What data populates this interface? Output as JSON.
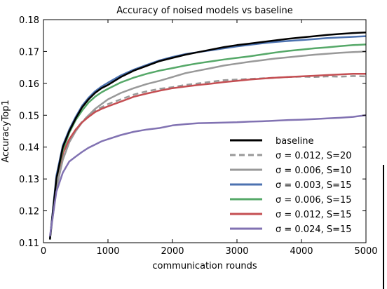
{
  "chart_data": {
    "type": "line",
    "title": "Accuracy of noised models vs baseline",
    "xlabel": "communication rounds",
    "ylabel": "AccuracyTop1",
    "xlim": [
      0,
      5000
    ],
    "ylim": [
      0.11,
      0.18
    ],
    "xticks": [
      0,
      1000,
      2000,
      3000,
      4000,
      5000
    ],
    "xtick_labels": [
      "0",
      "1000",
      "2000",
      "3000",
      "4000",
      "5000"
    ],
    "yticks": [
      0.11,
      0.12,
      0.13,
      0.14,
      0.15,
      0.16,
      0.17,
      0.18
    ],
    "ytick_labels": [
      "0.11",
      "0.12",
      "0.13",
      "0.14",
      "0.15",
      "0.16",
      "0.17",
      "0.18"
    ],
    "grid": false,
    "legend_position": "lower-right",
    "series": [
      {
        "name": "baseline",
        "color": "#000000",
        "dash": "solid",
        "x": [
          100,
          200,
          300,
          400,
          500,
          600,
          700,
          800,
          900,
          1000,
          1200,
          1400,
          1600,
          1800,
          2000,
          2200,
          2400,
          2600,
          2800,
          3000,
          3200,
          3400,
          3600,
          3800,
          4000,
          4200,
          4400,
          4600,
          4800,
          5000
        ],
        "y": [
          0.111,
          0.13,
          0.14,
          0.145,
          0.149,
          0.1525,
          0.155,
          0.157,
          0.1585,
          0.1595,
          0.162,
          0.164,
          0.1655,
          0.167,
          0.168,
          0.169,
          0.1698,
          0.1706,
          0.1714,
          0.172,
          0.1725,
          0.173,
          0.1735,
          0.174,
          0.1744,
          0.1748,
          0.1752,
          0.1755,
          0.1758,
          0.176
        ]
      },
      {
        "name": "σ = 0.012, S=20",
        "color": "#999999",
        "dash": "dashed",
        "x": [
          100,
          200,
          300,
          400,
          500,
          600,
          700,
          800,
          900,
          1000,
          1200,
          1400,
          1600,
          1800,
          2000,
          2200,
          2400,
          2600,
          2800,
          3000,
          3200,
          3400,
          3600,
          3800,
          4000,
          4200,
          4400,
          4600,
          4800,
          5000
        ],
        "y": [
          0.111,
          0.128,
          0.137,
          0.142,
          0.1455,
          0.148,
          0.15,
          0.1515,
          0.1525,
          0.1535,
          0.155,
          0.1565,
          0.1575,
          0.1583,
          0.1588,
          0.1595,
          0.16,
          0.1605,
          0.161,
          0.1612,
          0.1614,
          0.1616,
          0.1618,
          0.162,
          0.1621,
          0.162,
          0.1622,
          0.1621,
          0.1623,
          0.1622
        ]
      },
      {
        "name": "σ = 0.006, S=10",
        "color": "#999999",
        "dash": "solid",
        "x": [
          100,
          200,
          300,
          400,
          500,
          600,
          700,
          800,
          900,
          1000,
          1200,
          1400,
          1600,
          1800,
          2000,
          2200,
          2400,
          2600,
          2800,
          3000,
          3200,
          3400,
          3600,
          3800,
          4000,
          4200,
          4400,
          4600,
          4800,
          5000
        ],
        "y": [
          0.111,
          0.127,
          0.136,
          0.1415,
          0.145,
          0.1478,
          0.15,
          0.152,
          0.1535,
          0.155,
          0.157,
          0.1585,
          0.1598,
          0.1608,
          0.162,
          0.1632,
          0.164,
          0.1648,
          0.1656,
          0.1662,
          0.1668,
          0.1673,
          0.1678,
          0.1682,
          0.1686,
          0.169,
          0.1693,
          0.1696,
          0.1698,
          0.17
        ]
      },
      {
        "name": "σ = 0.003, S=15",
        "color": "#4c72b0",
        "dash": "solid",
        "x": [
          100,
          200,
          300,
          400,
          500,
          600,
          700,
          800,
          900,
          1000,
          1200,
          1400,
          1600,
          1800,
          2000,
          2200,
          2400,
          2600,
          2800,
          3000,
          3200,
          3400,
          3600,
          3800,
          4000,
          4200,
          4400,
          4600,
          4800,
          5000
        ],
        "y": [
          0.111,
          0.131,
          0.1405,
          0.1455,
          0.1495,
          0.153,
          0.1555,
          0.1575,
          0.159,
          0.1602,
          0.1625,
          0.1643,
          0.1658,
          0.1672,
          0.1683,
          0.1692,
          0.1698,
          0.1704,
          0.171,
          0.1716,
          0.1721,
          0.1726,
          0.173,
          0.1733,
          0.1736,
          0.1739,
          0.1742,
          0.1744,
          0.1746,
          0.1748
        ]
      },
      {
        "name": "σ = 0.006, S=15",
        "color": "#55a868",
        "dash": "solid",
        "x": [
          100,
          200,
          300,
          400,
          500,
          600,
          700,
          800,
          900,
          1000,
          1200,
          1400,
          1600,
          1800,
          2000,
          2200,
          2400,
          2600,
          2800,
          3000,
          3200,
          3400,
          3600,
          3800,
          4000,
          4200,
          4400,
          4600,
          4800,
          5000
        ],
        "y": [
          0.111,
          0.13,
          0.139,
          0.1445,
          0.1485,
          0.1515,
          0.154,
          0.1558,
          0.1572,
          0.1583,
          0.1603,
          0.1618,
          0.163,
          0.164,
          0.1648,
          0.1656,
          0.1663,
          0.1669,
          0.1675,
          0.168,
          0.1685,
          0.1691,
          0.1697,
          0.1702,
          0.1706,
          0.171,
          0.1713,
          0.1717,
          0.172,
          0.1722
        ]
      },
      {
        "name": "σ = 0.012, S=15",
        "color": "#c44e52",
        "dash": "solid",
        "x": [
          100,
          200,
          300,
          400,
          500,
          600,
          700,
          800,
          900,
          1000,
          1200,
          1400,
          1600,
          1800,
          2000,
          2200,
          2400,
          2600,
          2800,
          3000,
          3200,
          3400,
          3600,
          3800,
          4000,
          4200,
          4400,
          4600,
          4800,
          5000
        ],
        "y": [
          0.111,
          0.13,
          0.138,
          0.1425,
          0.1455,
          0.1478,
          0.1495,
          0.151,
          0.152,
          0.1528,
          0.1543,
          0.1558,
          0.1568,
          0.1577,
          0.1585,
          0.159,
          0.1595,
          0.1599,
          0.1604,
          0.1608,
          0.1612,
          0.1615,
          0.1618,
          0.162,
          0.1622,
          0.1624,
          0.1626,
          0.1628,
          0.163,
          0.163
        ]
      },
      {
        "name": "σ = 0.024, S=15",
        "color": "#8172b2",
        "dash": "solid",
        "x": [
          100,
          200,
          300,
          400,
          500,
          600,
          700,
          800,
          900,
          1000,
          1200,
          1400,
          1600,
          1800,
          2000,
          2200,
          2400,
          2600,
          2800,
          3000,
          3200,
          3400,
          3600,
          3800,
          4000,
          4200,
          4400,
          4600,
          4800,
          5000
        ],
        "y": [
          0.112,
          0.126,
          0.132,
          0.1355,
          0.137,
          0.1385,
          0.1398,
          0.1408,
          0.1418,
          0.1425,
          0.1438,
          0.1448,
          0.1455,
          0.146,
          0.1468,
          0.1472,
          0.1475,
          0.1476,
          0.1477,
          0.1478,
          0.148,
          0.1481,
          0.1483,
          0.1485,
          0.1486,
          0.1488,
          0.149,
          0.1492,
          0.1495,
          0.15
        ]
      }
    ]
  }
}
